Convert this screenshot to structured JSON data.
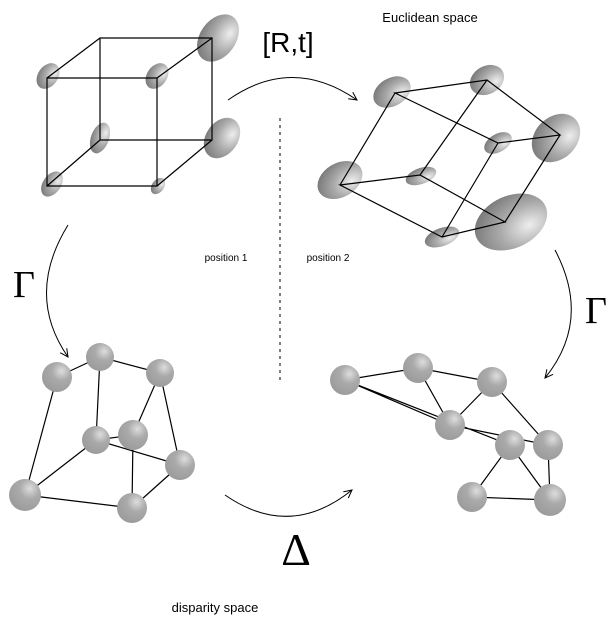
{
  "labels": {
    "euclidean": "Euclidean space",
    "transform": "[R,t]",
    "position1": "position 1",
    "position2": "position 2",
    "gamma_left": "Γ",
    "gamma_right": "Γ",
    "delta": "Δ",
    "disparity": "disparity space"
  }
}
